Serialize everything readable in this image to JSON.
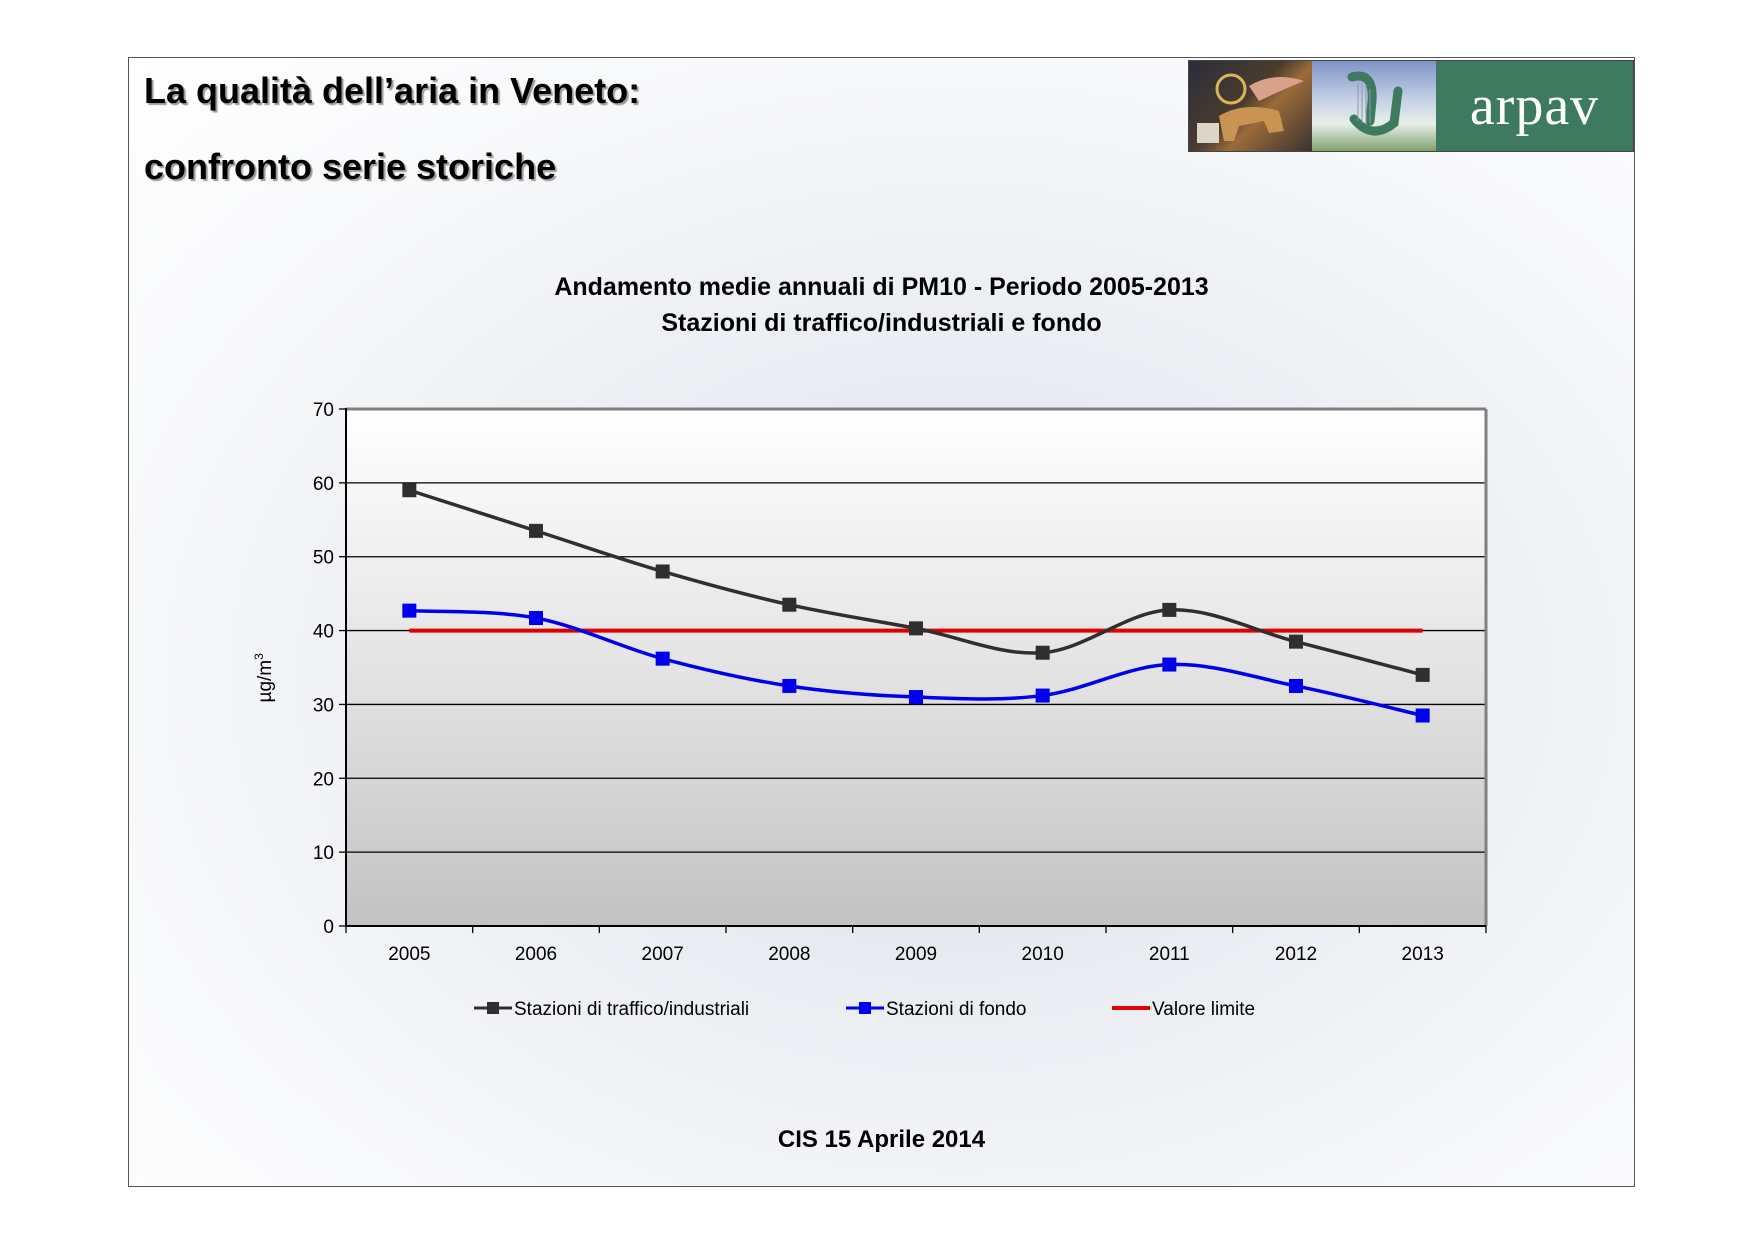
{
  "slide": {
    "title_line1": "La qualità dell’aria in Veneto:",
    "title_line2": "confronto serie storiche",
    "logo_text": "arpav",
    "footer": "CIS 15 Aprile 2014"
  },
  "colors": {
    "traffic": "#2f2f2f",
    "fondo": "#0000ee",
    "limit": "#e00000",
    "logo_green": "#3d7a60"
  },
  "chart_data": {
    "type": "line",
    "title": "Andamento medie annuali di PM10 - Periodo 2005-2013",
    "subtitle": "Stazioni di traffico/industriali e fondo",
    "xlabel": "",
    "ylabel": "µg/m",
    "ylabel_superscript": "3",
    "categories": [
      "2005",
      "2006",
      "2007",
      "2008",
      "2009",
      "2010",
      "2011",
      "2012",
      "2013"
    ],
    "ylim": [
      0,
      70
    ],
    "yticks": [
      "0",
      "10",
      "20",
      "30",
      "40",
      "50",
      "60",
      "70"
    ],
    "grid": true,
    "legend_position": "bottom",
    "series": [
      {
        "name": "Stazioni di traffico/industriali",
        "marker": "square",
        "smooth": true,
        "values": [
          59,
          53.5,
          48,
          43.5,
          40.3,
          37,
          42.8,
          38.5,
          34
        ]
      },
      {
        "name": "Stazioni di fondo",
        "marker": "square",
        "smooth": true,
        "values": [
          42.7,
          41.7,
          36.2,
          32.5,
          31,
          31.2,
          35.4,
          32.5,
          28.5
        ]
      },
      {
        "name": "Valore limite",
        "marker": "none",
        "smooth": false,
        "values": [
          40,
          40,
          40,
          40,
          40,
          40,
          40,
          40,
          40
        ]
      }
    ]
  }
}
